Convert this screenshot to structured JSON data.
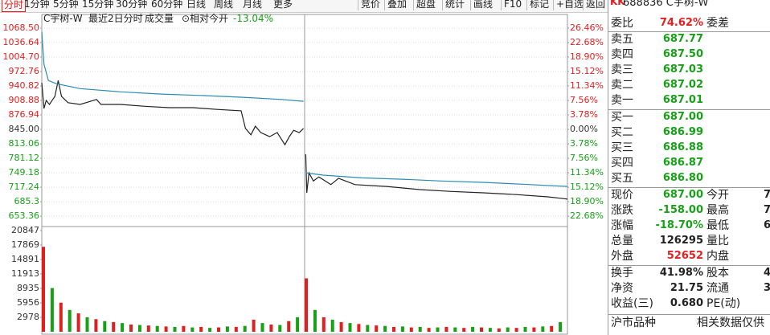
{
  "toolbar": {
    "tabs": [
      "分时",
      "1分钟",
      "5分钟",
      "15分钟",
      "30分钟",
      "60分钟",
      "日线",
      "周线",
      "月线",
      "更多"
    ],
    "tools": [
      "竞价",
      "叠加",
      "超盘",
      "统计",
      "画线",
      "F10",
      "标记",
      "+自选",
      "返回"
    ]
  },
  "chart_header": {
    "name": "C宇树-W",
    "range": "最近2日分时",
    "indicator": "成交量",
    "mode": "⊙相对今开",
    "change": "-13.04%",
    "change_color": "#18a018"
  },
  "chart_data": [
    {
      "type": "line",
      "xlim": [
        0,
        480
      ],
      "ylim": [
        634,
        1081
      ],
      "yticks": [
        {
          "value": 1068.5,
          "label": "1068.50"
        },
        1036.64,
        {
          "value": 1004.7,
          "label": "1004.70"
        },
        972.76,
        940.82,
        908.88,
        876.94,
        {
          "value": 845,
          "label": "845.00"
        },
        813.06,
        781.12,
        749.18,
        717.24,
        685.3,
        653.36
      ],
      "y2lim": [
        -24.97,
        27.93
      ],
      "y2ticks": [
        {
          "value": 26.46,
          "label": "26.46%"
        },
        {
          "value": 22.68,
          "label": "22.68%"
        },
        {
          "value": 18.9,
          "label": "18.90%"
        },
        {
          "value": 15.12,
          "label": "15.12%"
        },
        {
          "value": 11.34,
          "label": "11.34%"
        },
        {
          "value": 7.56,
          "label": "7.56%"
        },
        {
          "value": 3.78,
          "label": "3.78%"
        },
        {
          "value": 0,
          "label": "0.00%"
        },
        {
          "value": -3.78,
          "label": "3.78%"
        },
        {
          "value": -7.56,
          "label": "7.56%"
        },
        {
          "value": -11.34,
          "label": "11.34%"
        },
        {
          "value": -15.12,
          "label": "15.12%"
        },
        {
          "value": -18.9,
          "label": "18.90%"
        },
        {
          "value": -22.68,
          "label": "22.68%"
        }
      ],
      "grid": true,
      "up_color": "#e02020",
      "down_color": "#18a018",
      "flat_color": "#333333",
      "series": [
        {
          "color": "#222222",
          "x": [
            0,
            2,
            4,
            7,
            12,
            15,
            18,
            24,
            35,
            50,
            54,
            72,
            94,
            116,
            138,
            160,
            182,
            186,
            191,
            195,
            200,
            208,
            215,
            222,
            226,
            230,
            235,
            239,
            240,
            241,
            242,
            244,
            248,
            253,
            264,
            271,
            286,
            315,
            345,
            374,
            403,
            433,
            462,
            477,
            480
          ],
          "values": [
            948,
            891,
            909,
            900,
            918,
            953,
            918,
            904,
            900,
            911,
            900,
            900,
            896,
            893,
            893,
            889,
            886,
            847,
            833,
            852,
            838,
            829,
            838,
            811,
            829,
            843,
            838,
            847,
            null,
            790,
            705,
            749,
            731,
            740,
            723,
            737,
            723,
            719,
            712,
            708,
            705,
            701,
            696,
            692,
            691
          ]
        },
        {
          "color": "#2a8cb0",
          "x": [
            0,
            2,
            6,
            13,
            35,
            72,
            109,
            145,
            182,
            219,
            239,
            240,
            241,
            257,
            292,
            329,
            365,
            403,
            439,
            480
          ],
          "values": [
            1060,
            989,
            953,
            946,
            935,
            928,
            923,
            920,
            916,
            911,
            907,
            null,
            749,
            744,
            738,
            735,
            731,
            728,
            724,
            719
          ]
        }
      ]
    },
    {
      "type": "bar",
      "xlim": [
        0,
        480
      ],
      "ylim": [
        0,
        21500
      ],
      "yticks": [
        20847,
        17869,
        14891,
        11913,
        8935,
        5956,
        2978
      ],
      "series": [
        {
          "color": "#e02020",
          "x": [
            0,
            16,
            32,
            48,
            64,
            80,
            96,
            112,
            128,
            144,
            160,
            176,
            192,
            208,
            224,
            240,
            256,
            272,
            288,
            304,
            320,
            336,
            352,
            368,
            384,
            400,
            416,
            432,
            448,
            464
          ],
          "values": [
            17500,
            6000,
            3800,
            2600,
            2000,
            1500,
            1300,
            1100,
            1200,
            1000,
            900,
            1000,
            2500,
            1500,
            2200,
            11000,
            3000,
            2000,
            1600,
            1300,
            1000,
            900,
            800,
            1000,
            800,
            900,
            700,
            800,
            900,
            1200
          ]
        },
        {
          "color": "#18a018",
          "x": [
            8,
            24,
            40,
            56,
            72,
            88,
            104,
            120,
            136,
            152,
            168,
            184,
            200,
            216,
            232,
            248,
            264,
            280,
            296,
            312,
            328,
            344,
            360,
            376,
            392,
            408,
            424,
            440,
            456,
            472
          ],
          "values": [
            9000,
            4500,
            3000,
            2200,
            1800,
            1400,
            1200,
            1000,
            900,
            800,
            1100,
            1200,
            1800,
            1400,
            3000,
            4500,
            2500,
            1800,
            1400,
            1200,
            1100,
            1000,
            900,
            900,
            1000,
            800,
            900,
            1000,
            1100,
            2000
          ]
        }
      ]
    }
  ],
  "quote_panel": {
    "badge": "KK",
    "title": "688836 C宇树-W",
    "ratio": {
      "label": "委比",
      "value": "74.62%",
      "color": "#e02020",
      "label2": "委差"
    },
    "asks": [
      {
        "label": "卖五",
        "value": "687.77"
      },
      {
        "label": "卖四",
        "value": "687.50"
      },
      {
        "label": "卖三",
        "value": "687.03"
      },
      {
        "label": "卖二",
        "value": "687.02"
      },
      {
        "label": "卖一",
        "value": "687.01"
      }
    ],
    "bids": [
      {
        "label": "买一",
        "value": "687.00"
      },
      {
        "label": "买二",
        "value": "686.99"
      },
      {
        "label": "买三",
        "value": "686.88"
      },
      {
        "label": "买四",
        "value": "686.87"
      },
      {
        "label": "买五",
        "value": "686.80"
      }
    ],
    "book_color": "#18a018",
    "stats": [
      [
        {
          "label": "现价",
          "value": "687.00",
          "color": "#18a018"
        },
        {
          "label": "今开",
          "value": "7"
        }
      ],
      [
        {
          "label": "涨跌",
          "value": "-158.00",
          "color": "#18a018"
        },
        {
          "label": "最高",
          "value": "7"
        }
      ],
      [
        {
          "label": "涨幅",
          "value": "-18.70%",
          "color": "#18a018"
        },
        {
          "label": "最低",
          "value": "6"
        }
      ],
      [
        {
          "label": "总量",
          "value": "126295"
        },
        {
          "label": "量比"
        }
      ],
      [
        {
          "label": "外盘",
          "value": "52652",
          "color": "#e02020"
        },
        {
          "label": "内盘"
        }
      ],
      [
        {
          "label": "换手",
          "value": "41.98%"
        },
        {
          "label": "股本",
          "value": "4"
        }
      ],
      [
        {
          "label": "净资",
          "value": "21.75"
        },
        {
          "label": "流通",
          "value": "3"
        }
      ],
      [
        {
          "label": "收益(三)",
          "value": "0.680"
        },
        {
          "label": "PE(动)"
        }
      ]
    ],
    "footer": [
      "沪市品种",
      "相关数据仅供"
    ]
  }
}
